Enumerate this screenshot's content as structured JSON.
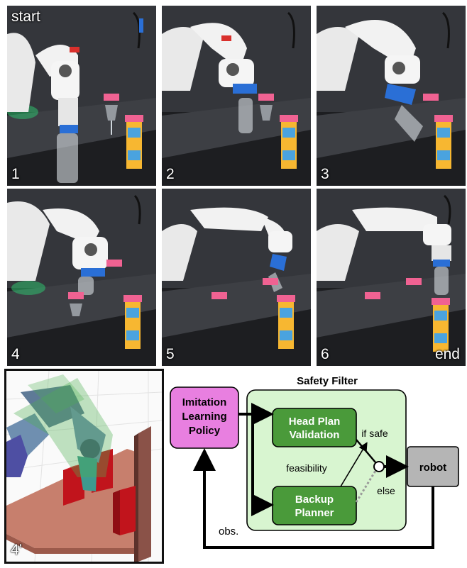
{
  "photo_panels": [
    {
      "number": "1",
      "tag": "start"
    },
    {
      "number": "2",
      "tag": ""
    },
    {
      "number": "3",
      "tag": ""
    },
    {
      "number": "4",
      "tag": ""
    },
    {
      "number": "5",
      "tag": ""
    },
    {
      "number": "6",
      "tag": "end"
    }
  ],
  "sim_panel": {
    "label": "4’"
  },
  "diagram": {
    "safety_filter_title": "Safety Filter",
    "policy_label": [
      "Imitation",
      "Learning",
      "Policy"
    ],
    "head_plan_label": [
      "Head Plan",
      "Validation"
    ],
    "backup_label": [
      "Backup",
      "Planner"
    ],
    "robot_label": "robot",
    "if_safe_label": "if safe",
    "else_label": "else",
    "feasibility_label": "feasibility",
    "obs_label": "obs.",
    "colors": {
      "policy_fill": "#e87fe0",
      "filter_fill": "#d8f5d0",
      "module_fill": "#4a9a3a",
      "robot_fill": "#b5b5b5"
    }
  }
}
